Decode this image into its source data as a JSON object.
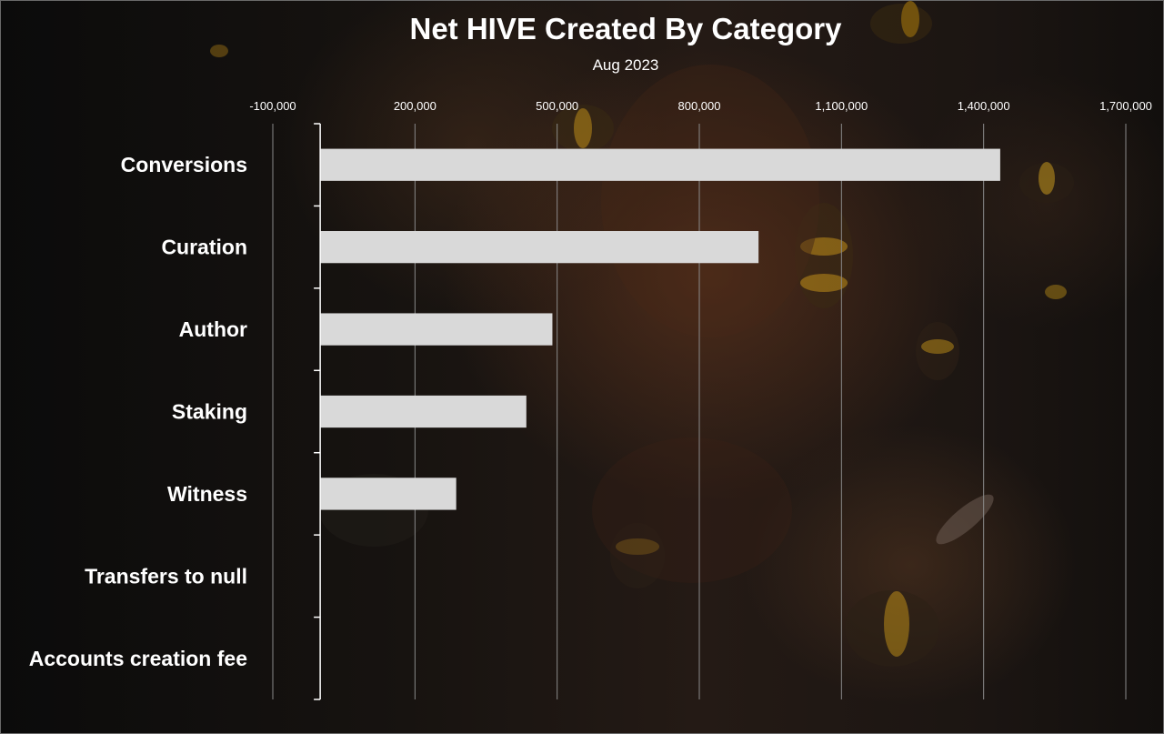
{
  "chart_data": {
    "type": "bar",
    "orientation": "horizontal",
    "title": "Net HIVE Created By Category",
    "subtitle": "Aug 2023",
    "categories": [
      "Conversions",
      "Curation",
      "Author",
      "Staking",
      "Witness",
      "Transfers to null",
      "Accounts creation fee"
    ],
    "values": [
      1435000,
      925000,
      490000,
      435000,
      287000,
      0,
      0
    ],
    "xlim": [
      -100000,
      1700000
    ],
    "xticks": [
      -100000,
      200000,
      500000,
      800000,
      1100000,
      1400000,
      1700000
    ],
    "xtick_labels": [
      "-100,000",
      "200,000",
      "500,000",
      "800,000",
      "1,100,000",
      "1,400,000",
      "1,700,000"
    ],
    "xaxis_position": "top",
    "grid": "vertical",
    "legend": "none",
    "colors": {
      "bar": "#d9d9d9",
      "gridline": "#8a8a8a",
      "axis": "#ffffff",
      "text": "#ffffff"
    }
  }
}
